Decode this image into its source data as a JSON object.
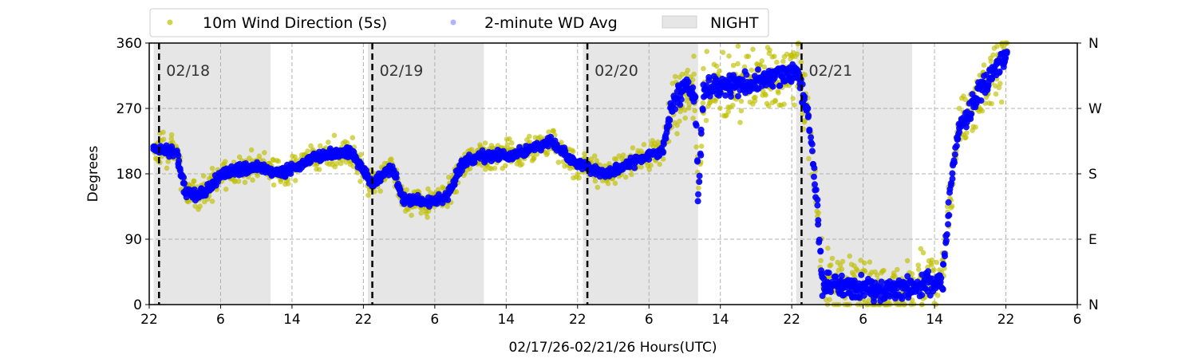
{
  "chart_data": {
    "type": "scatter",
    "xlabel": "02/17/26-02/21/26  Hours(UTC)",
    "ylabel": "Degrees",
    "xlim_hours_from_start": [
      0,
      104
    ],
    "x_tick_labels": [
      "22",
      "6",
      "14",
      "22",
      "6",
      "14",
      "22",
      "6",
      "14",
      "22",
      "6",
      "14",
      "22",
      "6"
    ],
    "x_tick_step_hours": 8,
    "ylim": [
      0,
      360
    ],
    "y_ticks": [
      0,
      90,
      180,
      270,
      360
    ],
    "y_tick_labels": [
      "0",
      "90",
      "180",
      "270",
      "360"
    ],
    "y_right_tick_labels": [
      "N",
      "E",
      "S",
      "W",
      "N"
    ],
    "grid": true,
    "legend": {
      "placement": "top-center-outside",
      "entries": [
        "10m Wind Direction (5s)",
        "2-minute WD Avg",
        "NIGHT"
      ]
    },
    "colors": {
      "wind5s": "#bfbf00",
      "avg2min": "#0000ff",
      "night": "#e6e6e6"
    },
    "night_intervals_hours": [
      [
        0.5,
        13.6
      ],
      [
        24.5,
        37.5
      ],
      [
        48.6,
        61.5
      ],
      [
        72.5,
        85.5
      ]
    ],
    "day_markers": [
      {
        "hour": 1.1,
        "label": "02/18"
      },
      {
        "hour": 25.0,
        "label": "02/19"
      },
      {
        "hour": 49.1,
        "label": "02/20"
      },
      {
        "hour": 73.1,
        "label": "02/21"
      }
    ],
    "series": [
      {
        "name": "2-minute WD Avg",
        "points": [
          [
            0.4,
            215
          ],
          [
            3,
            210
          ],
          [
            4,
            155
          ],
          [
            5.6,
            150
          ],
          [
            8.3,
            180
          ],
          [
            11.9,
            190
          ],
          [
            14.6,
            180
          ],
          [
            19,
            205
          ],
          [
            22.6,
            210
          ],
          [
            24,
            185
          ],
          [
            25,
            165
          ],
          [
            27.1,
            190
          ],
          [
            28.4,
            145
          ],
          [
            31.6,
            140
          ],
          [
            33.4,
            150
          ],
          [
            35.1,
            195
          ],
          [
            36.9,
            205
          ],
          [
            40.5,
            205
          ],
          [
            45,
            225
          ],
          [
            47.7,
            195
          ],
          [
            51.2,
            180
          ],
          [
            54.8,
            200
          ],
          [
            57.5,
            210
          ],
          [
            58.4,
            270
          ],
          [
            60.2,
            305
          ],
          [
            61.1,
            290
          ],
          [
            61.5,
            150
          ],
          [
            62.1,
            300
          ],
          [
            65.5,
            300
          ],
          [
            69.1,
            310
          ],
          [
            72.7,
            320
          ],
          [
            74,
            240
          ],
          [
            74.7,
            150
          ],
          [
            75.4,
            30
          ],
          [
            81.6,
            20
          ],
          [
            88.8,
            30
          ],
          [
            89.7,
            150
          ],
          [
            90.6,
            240
          ],
          [
            93.3,
            300
          ],
          [
            96.1,
            345
          ]
        ]
      },
      {
        "name": "10m Wind Direction (5s)",
        "spread_deg": 28
      }
    ]
  }
}
